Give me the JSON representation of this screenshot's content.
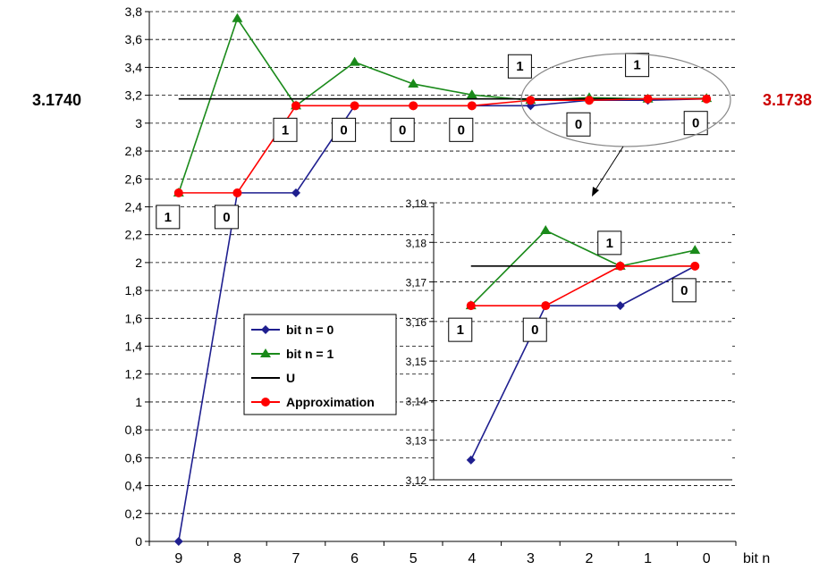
{
  "side_labels": {
    "left_value": "3.1740",
    "right_value": "3.1738",
    "right_color": "#cc0000"
  },
  "colors": {
    "bit0": "#1f1f8f",
    "bit1": "#1a8a1a",
    "U": "#000000",
    "approximation": "#ff0000"
  },
  "chart_data": [
    {
      "type": "line",
      "x_tick_labels": [
        "9",
        "8",
        "7",
        "6",
        "5",
        "4",
        "3",
        "2",
        "1",
        "0"
      ],
      "x_axis_label": "bit n",
      "y_tick_labels": [
        "0",
        "0,2",
        "0,4",
        "0,6",
        "0,8",
        "1",
        "1,2",
        "1,4",
        "1,6",
        "1,8",
        "2",
        "2,2",
        "2,4",
        "2,6",
        "2,8",
        "3",
        "3,2",
        "3,4",
        "3,6",
        "3,8"
      ],
      "ylim": [
        0,
        3.8
      ],
      "y_step": 0.2,
      "grid": "horizontal-dashed",
      "series": [
        {
          "name": "bit n = 0",
          "key": "bit0",
          "marker": "diamond",
          "values": [
            0,
            2.5,
            2.5,
            3.125,
            3.125,
            3.125,
            3.125,
            3.164,
            3.164,
            3.174
          ]
        },
        {
          "name": "bit n = 1",
          "key": "bit1",
          "marker": "triangle",
          "values": [
            2.5,
            3.75,
            3.125,
            3.4375,
            3.28125,
            3.203,
            3.164,
            3.183,
            3.174,
            3.178
          ]
        },
        {
          "name": "U",
          "key": "U",
          "marker": "none",
          "values": [
            3.174,
            3.174,
            3.174,
            3.174,
            3.174,
            3.174,
            3.174,
            3.174,
            3.174,
            3.174
          ]
        },
        {
          "name": "Approximation",
          "key": "approximation",
          "marker": "circle",
          "values": [
            2.5,
            2.5,
            3.125,
            3.125,
            3.125,
            3.125,
            3.164,
            3.164,
            3.174,
            3.174
          ]
        }
      ],
      "bit_labels": [
        {
          "index": 0,
          "bit": "1",
          "position": "below"
        },
        {
          "index": 1,
          "bit": "0",
          "position": "below"
        },
        {
          "index": 2,
          "bit": "1",
          "position": "below"
        },
        {
          "index": 3,
          "bit": "0",
          "position": "below"
        },
        {
          "index": 4,
          "bit": "0",
          "position": "below"
        },
        {
          "index": 5,
          "bit": "0",
          "position": "below"
        },
        {
          "index": 6,
          "bit": "1",
          "position": "above"
        },
        {
          "index": 7,
          "bit": "0",
          "position": "below"
        },
        {
          "index": 8,
          "bit": "1",
          "position": "above"
        },
        {
          "index": 9,
          "bit": "0",
          "position": "below"
        }
      ],
      "legend": {
        "placement": "center-left",
        "entries": [
          "bit n = 0",
          "bit n = 1",
          "U",
          "Approximation"
        ]
      }
    },
    {
      "type": "line",
      "role": "inset-zoom",
      "zoom_of_indices": [
        6,
        7,
        8,
        9
      ],
      "y_tick_labels": [
        "3,12",
        "3,13",
        "3,14",
        "3,15",
        "3,16",
        "3,17",
        "3,18",
        "3,19"
      ],
      "ylim": [
        3.12,
        3.19
      ],
      "y_step": 0.01,
      "grid": "horizontal-dashed",
      "series": [
        {
          "name": "bit n = 0",
          "key": "bit0",
          "marker": "diamond",
          "values": [
            3.125,
            3.164,
            3.164,
            3.174
          ]
        },
        {
          "name": "bit n = 1",
          "key": "bit1",
          "marker": "triangle",
          "values": [
            3.164,
            3.183,
            3.174,
            3.178
          ]
        },
        {
          "name": "U",
          "key": "U",
          "marker": "none",
          "values": [
            3.174,
            3.174,
            3.174,
            3.174
          ]
        },
        {
          "name": "Approximation",
          "key": "approximation",
          "marker": "circle",
          "values": [
            3.164,
            3.164,
            3.174,
            3.174
          ]
        }
      ],
      "bit_labels": [
        {
          "index": 0,
          "bit": "1",
          "position": "below"
        },
        {
          "index": 1,
          "bit": "0",
          "position": "below"
        },
        {
          "index": 2,
          "bit": "1",
          "position": "above"
        },
        {
          "index": 3,
          "bit": "0",
          "position": "below"
        }
      ]
    }
  ]
}
